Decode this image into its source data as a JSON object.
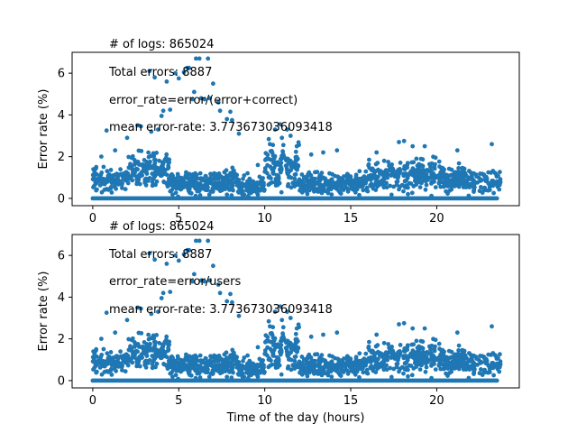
{
  "chart_data": [
    {
      "type": "scatter",
      "ylabel": "Error rate (%)",
      "xlabel": "",
      "xlim": [
        -1.2,
        24.8
      ],
      "ylim": [
        -0.35,
        7.0
      ],
      "xticks": [
        0,
        5,
        10,
        15,
        20
      ],
      "yticks": [
        0,
        2,
        4,
        6
      ],
      "marker_color": "#1f77b4",
      "annotations": [
        "# of logs: 865024",
        "Total errors: 8887",
        "error_rate=error/(error+correct)",
        "mean error-rate: 3.773673036093418"
      ],
      "points": [
        [
          0.8,
          3.25
        ],
        [
          2.6,
          3.5
        ],
        [
          2.8,
          3.45
        ],
        [
          3.3,
          6.1
        ],
        [
          3.4,
          3.2
        ],
        [
          3.6,
          5.8
        ],
        [
          4.3,
          5.6
        ],
        [
          4.8,
          6.0
        ],
        [
          5.0,
          5.75
        ],
        [
          5.3,
          6.05
        ],
        [
          5.5,
          6.25
        ],
        [
          5.6,
          6.25
        ],
        [
          5.9,
          5.1
        ],
        [
          6.0,
          6.7
        ],
        [
          6.2,
          6.7
        ],
        [
          6.7,
          6.7
        ],
        [
          7.0,
          5.5
        ],
        [
          7.3,
          4.6
        ],
        [
          7.4,
          4.2
        ],
        [
          7.8,
          3.8
        ],
        [
          8.0,
          4.15
        ],
        [
          8.1,
          3.75
        ],
        [
          8.5,
          3.1
        ],
        [
          4.1,
          4.2
        ],
        [
          4.5,
          4.25
        ],
        [
          4.0,
          3.95
        ],
        [
          3.8,
          3.3
        ],
        [
          6.3,
          4.8
        ],
        [
          6.5,
          4.75
        ],
        [
          6.8,
          4.8
        ],
        [
          5.8,
          4.75
        ],
        [
          10.6,
          3.3
        ],
        [
          10.9,
          3.55
        ],
        [
          11.3,
          3.3
        ],
        [
          11.5,
          3.0
        ],
        [
          11.0,
          2.9
        ],
        [
          10.3,
          2.6
        ],
        [
          16.5,
          2.2
        ],
        [
          17.8,
          2.7
        ],
        [
          18.1,
          2.75
        ],
        [
          18.6,
          2.5
        ],
        [
          19.3,
          2.5
        ],
        [
          21.2,
          2.3
        ],
        [
          23.2,
          2.6
        ],
        [
          14.2,
          2.3
        ],
        [
          12.7,
          2.1
        ],
        [
          13.4,
          2.2
        ],
        [
          2.0,
          2.9
        ],
        [
          1.3,
          2.3
        ],
        [
          0.2,
          1.5
        ],
        [
          0.5,
          2.0
        ],
        [
          9.0,
          1.2
        ],
        [
          9.6,
          1.6
        ],
        [
          10.1,
          1.9
        ],
        [
          8.8,
          1.1
        ]
      ]
    },
    {
      "type": "scatter",
      "ylabel": "Error rate (%)",
      "xlabel": "Time of the day (hours)",
      "xlim": [
        -1.2,
        24.8
      ],
      "ylim": [
        -0.35,
        7.0
      ],
      "xticks": [
        0,
        5,
        10,
        15,
        20
      ],
      "yticks": [
        0,
        2,
        4,
        6
      ],
      "marker_color": "#1f77b4",
      "annotations": [
        "# of logs: 865024",
        "Total errors: 8887",
        "error_rate=error/users",
        "mean error-rate: 3.773673036093418"
      ],
      "points": [
        [
          0.8,
          3.25
        ],
        [
          2.6,
          3.5
        ],
        [
          2.8,
          3.45
        ],
        [
          3.3,
          6.1
        ],
        [
          3.4,
          3.2
        ],
        [
          3.6,
          5.8
        ],
        [
          4.3,
          5.6
        ],
        [
          4.8,
          6.0
        ],
        [
          5.0,
          5.75
        ],
        [
          5.3,
          6.05
        ],
        [
          5.5,
          6.25
        ],
        [
          5.6,
          6.25
        ],
        [
          5.9,
          5.1
        ],
        [
          6.0,
          6.7
        ],
        [
          6.2,
          6.7
        ],
        [
          6.7,
          6.7
        ],
        [
          7.0,
          5.5
        ],
        [
          7.3,
          4.6
        ],
        [
          7.4,
          4.2
        ],
        [
          7.8,
          3.8
        ],
        [
          8.0,
          4.15
        ],
        [
          8.1,
          3.75
        ],
        [
          8.5,
          3.1
        ],
        [
          4.1,
          4.2
        ],
        [
          4.5,
          4.25
        ],
        [
          4.0,
          3.95
        ],
        [
          3.8,
          3.3
        ],
        [
          6.3,
          4.8
        ],
        [
          6.5,
          4.75
        ],
        [
          6.8,
          4.8
        ],
        [
          5.8,
          4.75
        ],
        [
          10.6,
          3.3
        ],
        [
          10.9,
          3.55
        ],
        [
          11.3,
          3.3
        ],
        [
          11.5,
          3.0
        ],
        [
          11.0,
          2.9
        ],
        [
          10.3,
          2.6
        ],
        [
          16.5,
          2.2
        ],
        [
          17.8,
          2.7
        ],
        [
          18.1,
          2.75
        ],
        [
          18.6,
          2.5
        ],
        [
          19.3,
          2.5
        ],
        [
          21.2,
          2.3
        ],
        [
          23.2,
          2.6
        ],
        [
          14.2,
          2.3
        ],
        [
          12.7,
          2.1
        ],
        [
          13.4,
          2.2
        ],
        [
          2.0,
          2.9
        ],
        [
          1.3,
          2.3
        ],
        [
          0.2,
          1.5
        ],
        [
          0.5,
          2.0
        ],
        [
          9.0,
          1.2
        ],
        [
          9.6,
          1.6
        ],
        [
          10.1,
          1.9
        ],
        [
          8.8,
          1.1
        ]
      ]
    }
  ]
}
